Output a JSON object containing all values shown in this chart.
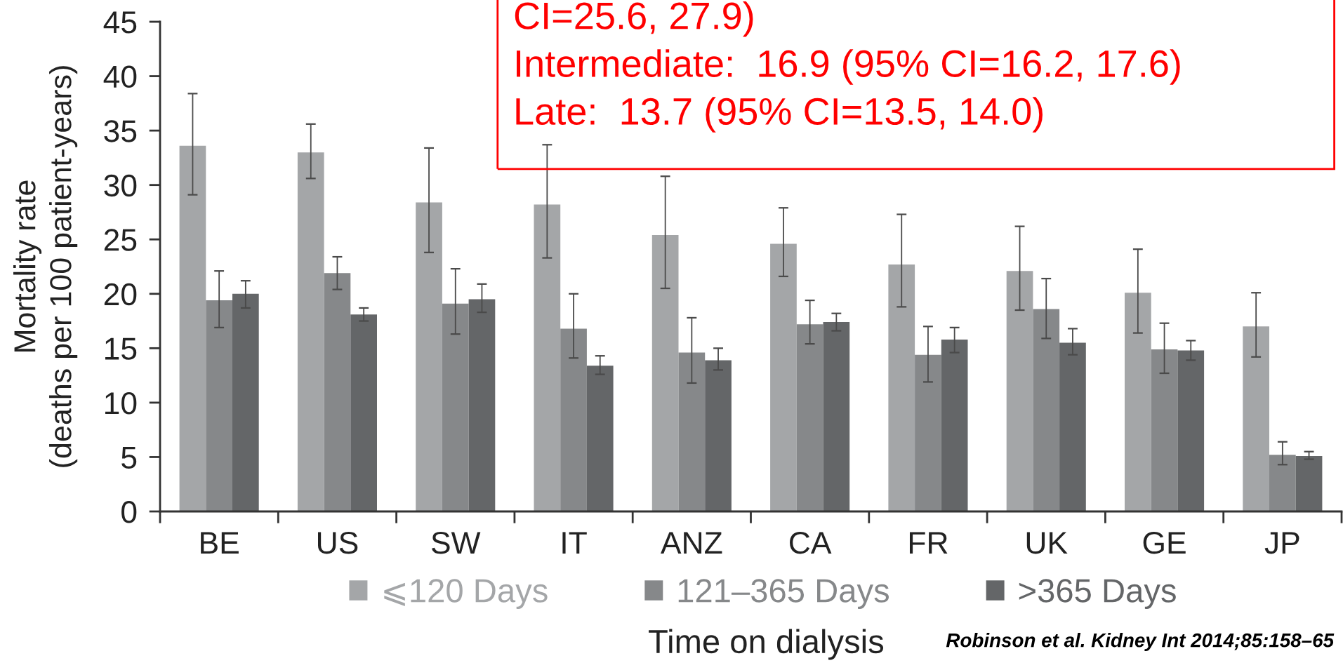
{
  "chart_data": {
    "type": "bar",
    "xlabel": "Time on dialysis",
    "ylabel": "Mortality rate\n(deaths per 100 patient-years)",
    "categories": [
      "BE",
      "US",
      "SW",
      "IT",
      "ANZ",
      "CA",
      "FR",
      "UK",
      "GE",
      "JP"
    ],
    "series": [
      {
        "name": "⩽120 Days",
        "color": "#a4a6a8",
        "values": [
          33.6,
          33.0,
          28.4,
          28.2,
          25.4,
          24.6,
          22.7,
          22.1,
          20.1,
          17.0
        ],
        "errors": [
          [
            29.1,
            38.4
          ],
          [
            30.6,
            35.6
          ],
          [
            23.8,
            33.4
          ],
          [
            23.3,
            33.7
          ],
          [
            20.5,
            30.8
          ],
          [
            21.6,
            27.9
          ],
          [
            18.8,
            27.3
          ],
          [
            18.5,
            26.2
          ],
          [
            16.4,
            24.1
          ],
          [
            14.2,
            20.1
          ]
        ]
      },
      {
        "name": "121–365 Days",
        "color": "#86888a",
        "values": [
          19.4,
          21.9,
          19.1,
          16.8,
          14.6,
          17.2,
          14.4,
          18.6,
          14.9,
          5.2
        ],
        "errors": [
          [
            16.9,
            22.1
          ],
          [
            20.4,
            23.4
          ],
          [
            16.3,
            22.3
          ],
          [
            14.1,
            20.0
          ],
          [
            11.8,
            17.8
          ],
          [
            15.4,
            19.4
          ],
          [
            11.9,
            17.0
          ],
          [
            15.9,
            21.4
          ],
          [
            12.7,
            17.3
          ],
          [
            4.3,
            6.4
          ]
        ]
      },
      {
        "name": ">365 Days",
        "color": "#646668",
        "values": [
          20.0,
          18.1,
          19.5,
          13.4,
          13.9,
          17.4,
          15.8,
          15.5,
          14.8,
          5.1
        ],
        "errors": [
          [
            18.7,
            21.2
          ],
          [
            17.5,
            18.7
          ],
          [
            18.3,
            20.9
          ],
          [
            12.6,
            14.3
          ],
          [
            13.0,
            15.0
          ],
          [
            16.6,
            18.2
          ],
          [
            14.6,
            16.9
          ],
          [
            14.4,
            16.8
          ],
          [
            13.9,
            15.7
          ],
          [
            4.8,
            5.5
          ]
        ]
      }
    ],
    "ylim": [
      0,
      45
    ],
    "yticks": [
      0,
      5,
      10,
      15,
      20,
      25,
      30,
      35,
      40,
      45
    ],
    "legend": "bottom",
    "annotations": [
      "CI=25.6, 27.9)\nIntermediate:  16.9 (95% CI=16.2, 17.6)\nLate:  13.7 (95% CI=13.5, 14.0)",
      "Robinson et al. Kidney Int 2014;85:158–65"
    ]
  }
}
